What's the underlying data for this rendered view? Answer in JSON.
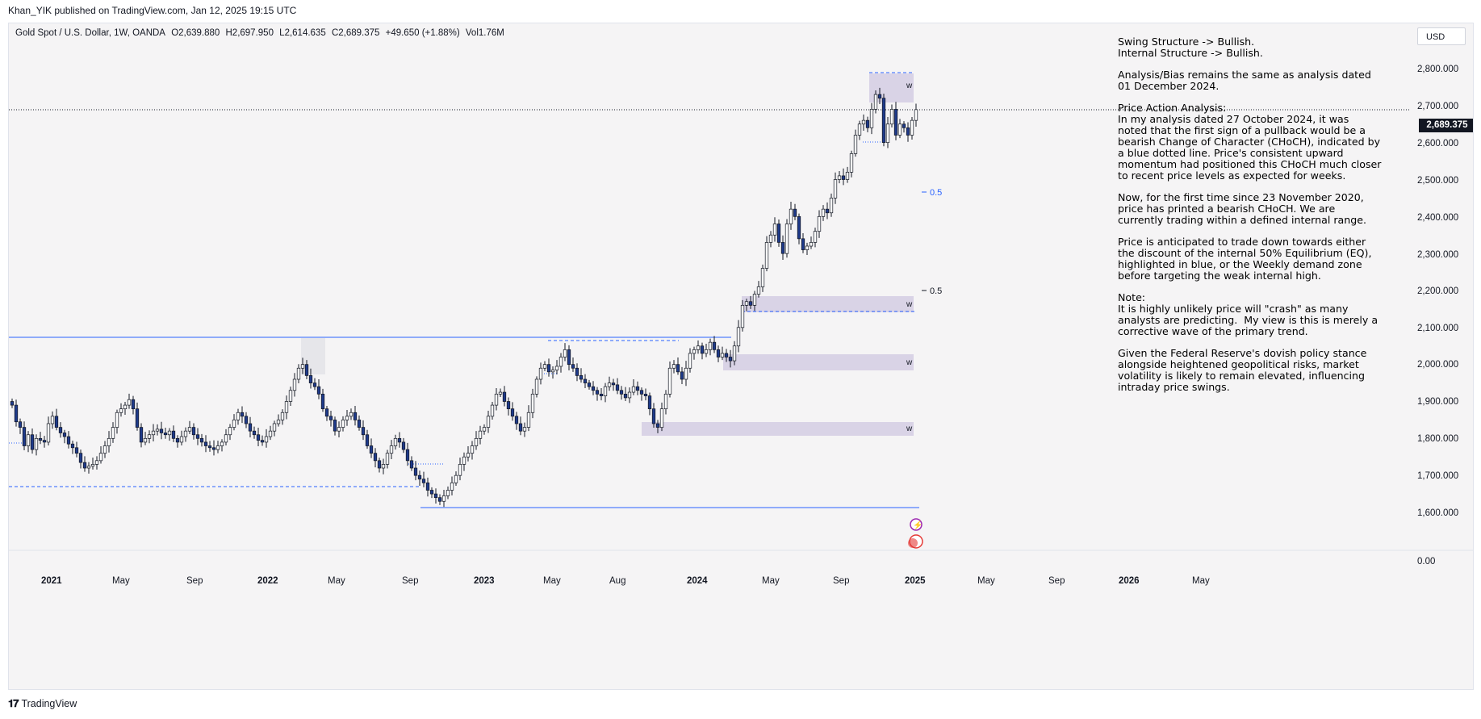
{
  "header": {
    "publisher_line": "Khan_YIK published on TradingView.com, Jan 12, 2025 19:15 UTC"
  },
  "legend": {
    "symbol": "Gold Spot / U.S. Dollar, 1W, OANDA",
    "open": "O2,639.880",
    "high": "H2,697.950",
    "low": "L2,614.635",
    "close": "C2,689.375",
    "change": "+49.650 (+1.88%)",
    "volume": "Vol1.76M"
  },
  "currency_button": "USD",
  "current_price": "2,689.375",
  "y_axis": {
    "labels": [
      "2,800.000",
      "2,700.000",
      "2,600.000",
      "2,500.000",
      "2,400.000",
      "2,300.000",
      "2,200.000",
      "2,100.000",
      "2,000.000",
      "1,900.000",
      "1,800.000",
      "1,700.000",
      "1,600.000",
      "0.00"
    ]
  },
  "x_axis": {
    "labels": [
      {
        "text": "2021",
        "bold": true
      },
      {
        "text": "May",
        "bold": false
      },
      {
        "text": "Sep",
        "bold": false
      },
      {
        "text": "2022",
        "bold": true
      },
      {
        "text": "May",
        "bold": false
      },
      {
        "text": "Sep",
        "bold": false
      },
      {
        "text": "2023",
        "bold": true
      },
      {
        "text": "May",
        "bold": false
      },
      {
        "text": "Aug",
        "bold": false
      },
      {
        "text": "2024",
        "bold": true
      },
      {
        "text": "May",
        "bold": false
      },
      {
        "text": "Sep",
        "bold": false
      },
      {
        "text": "2025",
        "bold": true
      },
      {
        "text": "May",
        "bold": false
      },
      {
        "text": "Sep",
        "bold": false
      },
      {
        "text": "2026",
        "bold": true
      },
      {
        "text": "May",
        "bold": false
      }
    ]
  },
  "annotations": {
    "zone_label": "w",
    "fib_label": "0.5"
  },
  "analysis": {
    "paragraphs": [
      "Swing Structure -> Bullish.\nInternal Structure -> Bullish.",
      "Analysis/Bias remains the same as analysis dated\n01 December 2024.",
      "Price Action Analysis:\nIn my analysis dated 27 October 2024, it was\nnoted that the first sign of a pullback would be a\nbearish Change of Character (CHoCH), indicated by\na blue dotted line. Price's consistent upward\nmomentum had positioned this CHoCH much closer\nto recent price levels as expected for weeks.",
      "Now, for the first time since 23 November 2020,\nprice has printed a bearish CHoCH. We are\ncurrently trading within a defined internal range.",
      "Price is anticipated to trade down towards either\nthe discount of the internal 50% Equilibrium (EQ),\nhighlighted in blue, or the Weekly demand zone\nbefore targeting the weak internal high.",
      "Note:\nIt is highly unlikely price will \"crash\" as many\nanalysts are predicting.  My view is this is merely a\ncorrective wave of the primary trend.",
      "Given the Federal Reserve's dovish policy stance\nalongside heightened geopolitical risks, market\nvolatility is likely to remain elevated, influencing\nintraday price swings."
    ]
  },
  "footer": {
    "brand": "TradingView"
  },
  "colors": {
    "up_candle": "#ffffff",
    "down_candle": "#1e3a8a",
    "wick": "#131722",
    "structure_line": "#2962ff",
    "zone_fill": "#d9d3e6"
  },
  "chart_data": {
    "type": "candlestick",
    "ylim": [
      1600,
      2800
    ],
    "closes": [
      1890,
      1845,
      1830,
      1780,
      1810,
      1770,
      1800,
      1795,
      1790,
      1840,
      1860,
      1830,
      1815,
      1805,
      1785,
      1775,
      1760,
      1735,
      1720,
      1725,
      1730,
      1740,
      1760,
      1780,
      1800,
      1830,
      1870,
      1880,
      1890,
      1905,
      1880,
      1830,
      1790,
      1800,
      1810,
      1820,
      1825,
      1815,
      1810,
      1820,
      1800,
      1790,
      1805,
      1820,
      1830,
      1810,
      1800,
      1790,
      1780,
      1775,
      1770,
      1780,
      1790,
      1810,
      1830,
      1850,
      1870,
      1860,
      1840,
      1820,
      1810,
      1795,
      1790,
      1805,
      1820,
      1840,
      1850,
      1870,
      1900,
      1930,
      1960,
      1990,
      2000,
      1970,
      1950,
      1940,
      1920,
      1880,
      1860,
      1850,
      1820,
      1830,
      1850,
      1860,
      1870,
      1850,
      1830,
      1810,
      1780,
      1760,
      1740,
      1720,
      1730,
      1760,
      1780,
      1800,
      1790,
      1770,
      1740,
      1720,
      1700,
      1690,
      1680,
      1660,
      1650,
      1640,
      1630,
      1645,
      1660,
      1680,
      1700,
      1730,
      1750,
      1760,
      1780,
      1800,
      1820,
      1830,
      1860,
      1890,
      1920,
      1925,
      1900,
      1880,
      1860,
      1840,
      1820,
      1830,
      1870,
      1920,
      1960,
      1990,
      2000,
      1980,
      1985,
      1995,
      2020,
      2040,
      2000,
      1990,
      1970,
      1960,
      1950,
      1940,
      1930,
      1920,
      1915,
      1940,
      1950,
      1945,
      1930,
      1920,
      1910,
      1925,
      1940,
      1930,
      1920,
      1915,
      1880,
      1840,
      1830,
      1880,
      1920,
      1990,
      2000,
      1980,
      1960,
      1990,
      2030,
      2040,
      2050,
      2030,
      2040,
      2060,
      2040,
      2020,
      2030,
      2020,
      2010,
      2050,
      2100,
      2160,
      2170,
      2160,
      2190,
      2210,
      2260,
      2330,
      2350,
      2380,
      2330,
      2300,
      2380,
      2420,
      2400,
      2340,
      2310,
      2320,
      2330,
      2360,
      2400,
      2420,
      2410,
      2450,
      2500,
      2510,
      2500,
      2520,
      2570,
      2620,
      2650,
      2660,
      2640,
      2690,
      2730,
      2720,
      2600,
      2650,
      2690,
      2620,
      2650,
      2640,
      2620,
      2660,
      2689
    ]
  }
}
